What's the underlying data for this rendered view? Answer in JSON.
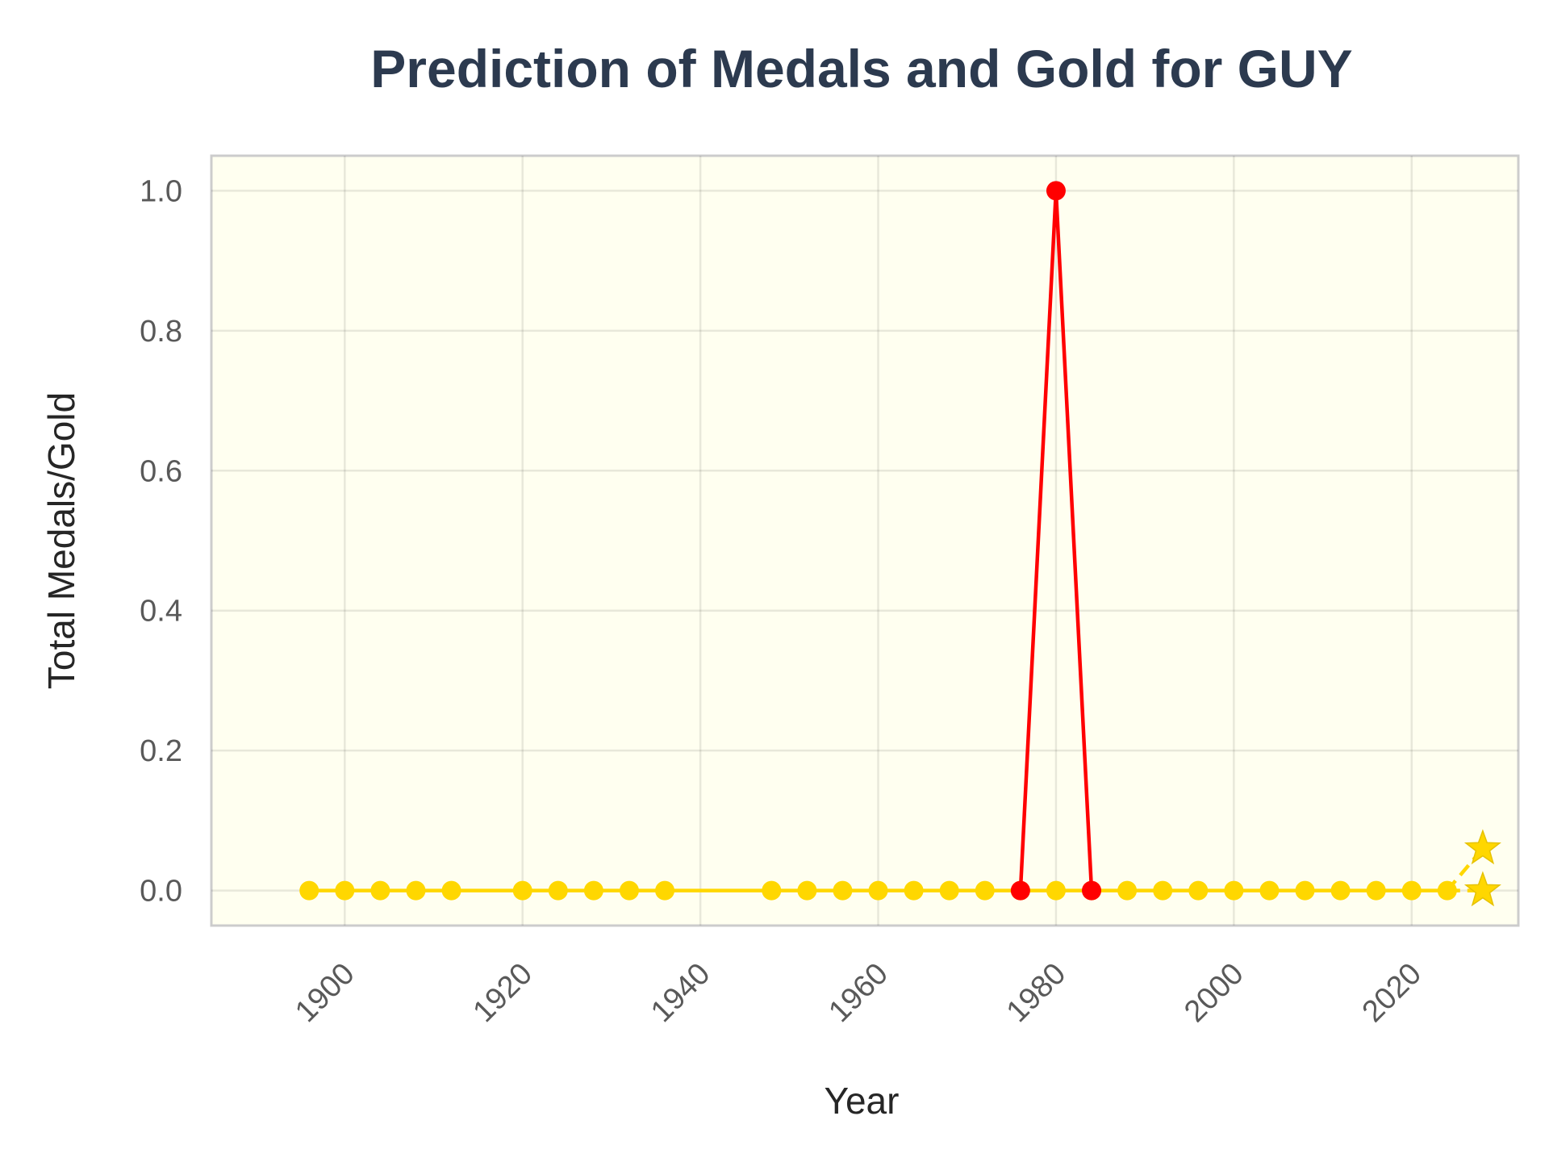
{
  "chart_data": {
    "type": "line",
    "title": "Prediction of Medals and Gold for GUY",
    "xlabel": "Year",
    "ylabel": "Total Medals/Gold",
    "xlim": [
      1885,
      2032
    ],
    "ylim": [
      -0.05,
      1.05
    ],
    "x_ticks": [
      1900,
      1920,
      1940,
      1960,
      1980,
      2000,
      2020
    ],
    "x_tick_labels": [
      "1900",
      "1920",
      "1940",
      "1960",
      "1980",
      "2000",
      "2020"
    ],
    "y_ticks": [
      0.0,
      0.2,
      0.4,
      0.6,
      0.8,
      1.0
    ],
    "y_tick_labels": [
      "0.0",
      "0.2",
      "0.4",
      "0.6",
      "0.8",
      "1.0"
    ],
    "grid": true,
    "background_color": "#fffff0",
    "series": [
      {
        "role": "total-medals",
        "color": "#ff0000",
        "marker": "circle",
        "x": [
          1976,
          1980,
          1984
        ],
        "y": [
          0,
          1,
          0
        ]
      },
      {
        "role": "gold",
        "color": "#ffd700",
        "marker": "circle",
        "x": [
          1896,
          1900,
          1904,
          1908,
          1912,
          1920,
          1924,
          1928,
          1932,
          1936,
          1948,
          1952,
          1956,
          1960,
          1964,
          1968,
          1972,
          1976,
          1980,
          1984,
          1988,
          1992,
          1996,
          2000,
          2004,
          2008,
          2012,
          2016,
          2020,
          2024
        ],
        "y": [
          0,
          0,
          0,
          0,
          0,
          0,
          0,
          0,
          0,
          0,
          0,
          0,
          0,
          0,
          0,
          0,
          0,
          0,
          0,
          0,
          0,
          0,
          0,
          0,
          0,
          0,
          0,
          0,
          0,
          0
        ]
      },
      {
        "role": "prediction-medals",
        "color": "#ffd700",
        "marker": "star",
        "dashed": true,
        "x": [
          2024,
          2028
        ],
        "y": [
          0,
          0.06
        ]
      },
      {
        "role": "prediction-gold",
        "color": "#ffd700",
        "marker": "star",
        "dashed": true,
        "x": [
          2024,
          2028
        ],
        "y": [
          0,
          0
        ]
      }
    ]
  }
}
